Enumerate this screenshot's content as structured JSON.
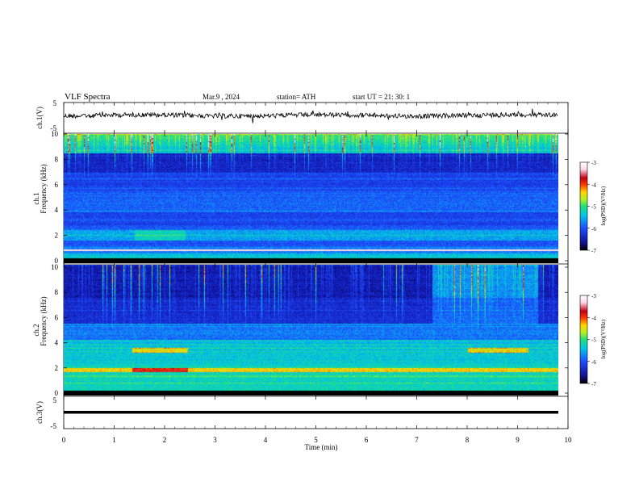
{
  "header": {
    "title": "VLF  Spectra",
    "date": "Mar.9   , 2024",
    "station": "station= ATH",
    "start_ut": "start  UT  =    21: 30: 1"
  },
  "x_axis": {
    "label": "Time  (min)",
    "ticks": [
      "0",
      "1",
      "2",
      "3",
      "4",
      "5",
      "6",
      "7",
      "8",
      "9",
      "10"
    ],
    "range": [
      0,
      10
    ],
    "data_end_min": 9.8
  },
  "panels": {
    "ch1_waveform": {
      "ylabel": "ch.1(V)",
      "ticks": [
        "5",
        "-5"
      ],
      "range": [
        -5,
        5
      ]
    },
    "ch1_spectrogram": {
      "ylabel": "ch.1\nFrequency  (kHz)",
      "ylabel_line1": "ch.1",
      "ylabel_line2": "Frequency  (kHz)",
      "ticks": [
        "10",
        "8",
        "6",
        "4",
        "2",
        "0"
      ],
      "range": [
        0,
        10
      ]
    },
    "ch2_spectrogram": {
      "ylabel_line1": "ch.2",
      "ylabel_line2": "Frequency  (kHz)",
      "ticks": [
        "10",
        "8",
        "6",
        "4",
        "2",
        "0"
      ],
      "range": [
        0,
        10
      ]
    },
    "ch3_waveform": {
      "ylabel": "ch.3(V)",
      "ticks": [
        "5",
        "-5"
      ],
      "range": [
        -5,
        5
      ]
    }
  },
  "colorbar": {
    "label": "log(PSD)(V²/Hz)",
    "ticks": [
      "-3",
      "-4",
      "-5",
      "-6",
      "-7"
    ],
    "range": [
      -7,
      -3
    ],
    "colors": [
      "#000000",
      "#1010a0",
      "#1e4cff",
      "#00c8e6",
      "#22e07a",
      "#b8f020",
      "#ffd400",
      "#ff4000",
      "#c00010",
      "#ffd8e8",
      "#ffffff"
    ]
  },
  "chart_data": [
    {
      "type": "line",
      "title": "VLF  Spectra",
      "panel": "ch.1",
      "xlabel": "Time  (min)",
      "ylabel": "ch.1(V)",
      "xlim": [
        0,
        10
      ],
      "ylim": [
        -5,
        5
      ],
      "description_values": {
        "baseline_v": 0.0,
        "noise_amplitude_v": 0.6
      }
    },
    {
      "type": "heatmap",
      "panel": "ch.1",
      "xlabel": "Time  (min)",
      "ylabel": "Frequency  (kHz)",
      "xlim": [
        0,
        10
      ],
      "ylim": [
        0,
        10
      ],
      "zlim": [
        -7,
        -3
      ],
      "z_label": "log(PSD)(V²/Hz)",
      "features_khz": {
        "bright_band_low": [
          0.0,
          1.2
        ],
        "band_2_khz": [
          1.8,
          2.6
        ],
        "quiet_region": [
          3.0,
          7.5
        ],
        "sferic_band_high": [
          7.5,
          10.0
        ]
      }
    },
    {
      "type": "heatmap",
      "panel": "ch.2",
      "xlabel": "Time  (min)",
      "ylabel": "Frequency  (kHz)",
      "xlim": [
        0,
        10
      ],
      "ylim": [
        0,
        10
      ],
      "zlim": [
        -7,
        -3
      ],
      "z_label": "log(PSD)(V²/Hz)",
      "features_khz": {
        "strong_line_khz": 2.0,
        "secondary_line_khz": 3.5,
        "enhanced_segments_min": [
          [
            1.35,
            2.45
          ],
          [
            8.0,
            9.2
          ]
        ],
        "sferic_band_high": [
          6.5,
          10.0
        ]
      }
    },
    {
      "type": "line",
      "panel": "ch.3",
      "xlabel": "Time  (min)",
      "ylabel": "ch.3(V)",
      "xlim": [
        0,
        10
      ],
      "ylim": [
        -5,
        5
      ],
      "description_values": {
        "baseline_v": -0.3,
        "noise_amplitude_v": 0.0
      }
    }
  ]
}
